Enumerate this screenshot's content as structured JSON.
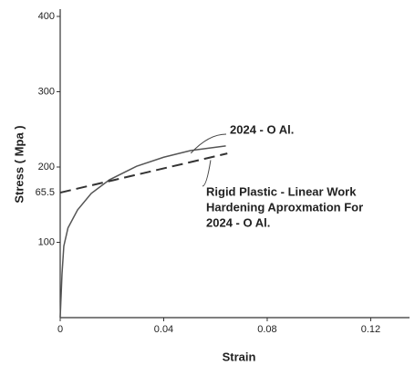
{
  "chart_data": {
    "type": "line",
    "y_label": "Stress ( Mpa )",
    "x_label": "Strain",
    "xlim": [
      0,
      0.135
    ],
    "ylim": [
      0,
      400
    ],
    "xticks": [
      0,
      0.04,
      0.08,
      0.12
    ],
    "yticks": [
      100,
      200,
      300,
      400
    ],
    "series": [
      {
        "name": "2024 - O Al.",
        "color": "#555555",
        "dashed": false,
        "x": [
          0,
          0.0007,
          0.0014,
          0.003,
          0.0067,
          0.012,
          0.019,
          0.0295,
          0.04,
          0.0505,
          0.064
        ],
        "values": [
          0,
          58,
          95,
          119,
          143,
          165,
          183,
          201,
          213,
          222,
          228
        ]
      },
      {
        "name": "Rigid Plastic - Linear Work Hardening Aproxmation For 2024 - O Al.",
        "color": "#333333",
        "dashed": true,
        "x": [
          0,
          0.0646
        ],
        "values": [
          166,
          218
        ]
      }
    ],
    "annotations": [
      {
        "text": "65.5",
        "y": 166
      }
    ],
    "callouts": [
      {
        "lines": [
          "2024 - O Al."
        ],
        "series": 0
      },
      {
        "lines": [
          "Rigid Plastic - Linear Work",
          "Hardening Aproxmation For",
          "2024 - O Al."
        ],
        "series": 1
      }
    ]
  }
}
